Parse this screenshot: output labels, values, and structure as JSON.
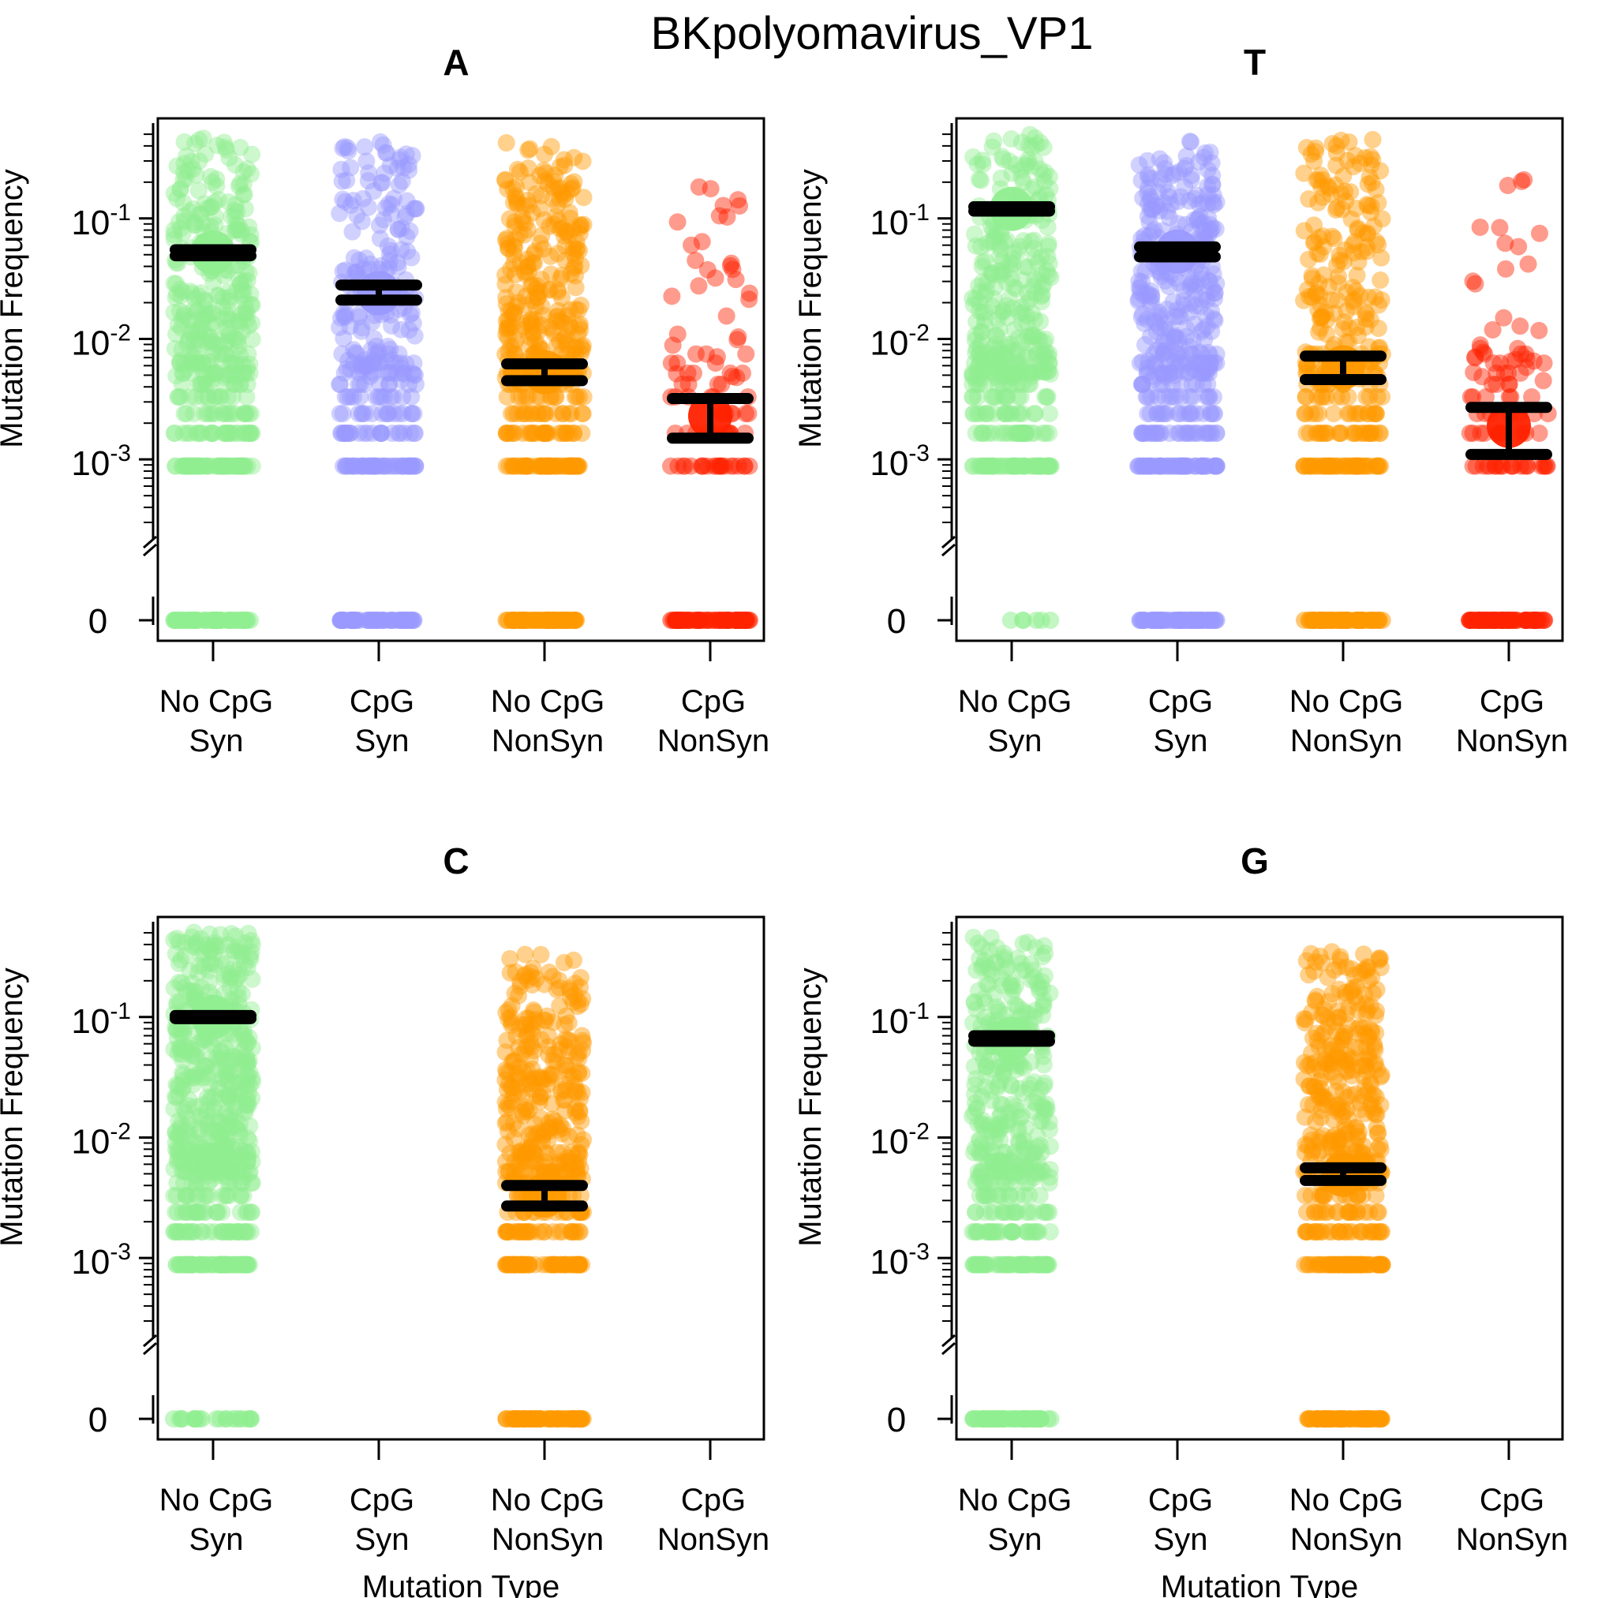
{
  "figure": {
    "title": "BKpolyomavirus_VP1",
    "ylabel": "Mutation Frequency",
    "xlabel": "Mutation Type",
    "y_tick_labels": [
      {
        "base": "10",
        "exp": "-1"
      },
      {
        "base": "10",
        "exp": "-2"
      },
      {
        "base": "10",
        "exp": "-3"
      }
    ],
    "zero_label": "0",
    "colors": {
      "No CpG Syn": "#90ee90",
      "CpG Syn": "#9999ff",
      "No CpG NonSyn": "#ff9900",
      "CpG NonSyn": "#ff2200",
      "bars": "#000000"
    }
  },
  "chart_data": [
    {
      "type": "scatter",
      "title": "A",
      "ylabel": "Mutation Frequency",
      "xlabel": "",
      "y_scale": "log",
      "y_range": [
        0.0003,
        0.6
      ],
      "x_category_lines": [
        [
          "No CpG",
          "Syn"
        ],
        [
          "CpG",
          "Syn"
        ],
        [
          "No CpG",
          "NonSyn"
        ],
        [
          "CpG",
          "NonSyn"
        ]
      ],
      "series": [
        {
          "name": "No CpG Syn",
          "mean": 0.052,
          "ci": [
            0.049,
            0.055
          ],
          "zero_count": "many",
          "density": "high",
          "spread": [
            0.0009,
            0.5
          ]
        },
        {
          "name": "CpG Syn",
          "mean": 0.024,
          "ci": [
            0.021,
            0.028
          ],
          "zero_count": "many",
          "density": "medium",
          "spread": [
            0.0009,
            0.45
          ]
        },
        {
          "name": "No CpG NonSyn",
          "mean": 0.0053,
          "ci": [
            0.0045,
            0.0062
          ],
          "zero_count": "many",
          "density": "high",
          "spread": [
            0.0009,
            0.45
          ]
        },
        {
          "name": "CpG NonSyn",
          "mean": 0.0023,
          "ci": [
            0.0015,
            0.0032
          ],
          "zero_count": "many",
          "density": "low",
          "spread": [
            0.0009,
            0.26
          ]
        }
      ]
    },
    {
      "type": "scatter",
      "title": "T",
      "ylabel": "Mutation Frequency",
      "xlabel": "",
      "y_scale": "log",
      "y_range": [
        0.0003,
        0.6
      ],
      "x_category_lines": [
        [
          "No CpG",
          "Syn"
        ],
        [
          "CpG",
          "Syn"
        ],
        [
          "No CpG",
          "NonSyn"
        ],
        [
          "CpG",
          "NonSyn"
        ]
      ],
      "series": [
        {
          "name": "No CpG Syn",
          "mean": 0.12,
          "ci": [
            0.115,
            0.125
          ],
          "zero_count": "few",
          "density": "high",
          "spread": [
            0.0009,
            0.55
          ]
        },
        {
          "name": "CpG Syn",
          "mean": 0.053,
          "ci": [
            0.048,
            0.058
          ],
          "zero_count": "many",
          "density": "high",
          "spread": [
            0.0009,
            0.45
          ]
        },
        {
          "name": "No CpG NonSyn",
          "mean": 0.0058,
          "ci": [
            0.0046,
            0.0072
          ],
          "zero_count": "many",
          "density": "medium",
          "spread": [
            0.0009,
            0.5
          ]
        },
        {
          "name": "CpG NonSyn",
          "mean": 0.0019,
          "ci": [
            0.0011,
            0.0027
          ],
          "zero_count": "many",
          "density": "low",
          "spread": [
            0.0009,
            0.22
          ]
        }
      ]
    },
    {
      "type": "scatter",
      "title": "C",
      "ylabel": "Mutation Frequency",
      "xlabel": "Mutation Type",
      "y_scale": "log",
      "y_range": [
        0.0003,
        0.6
      ],
      "x_category_lines": [
        [
          "No CpG",
          "Syn"
        ],
        [
          "CpG",
          "Syn"
        ],
        [
          "No CpG",
          "NonSyn"
        ],
        [
          "CpG",
          "NonSyn"
        ]
      ],
      "series": [
        {
          "name": "No CpG Syn",
          "mean": 0.1,
          "ci": [
            0.097,
            0.103
          ],
          "zero_count": "some",
          "density": "very-high",
          "spread": [
            0.0009,
            0.55
          ]
        },
        {
          "name": "No CpG NonSyn",
          "mean": 0.0033,
          "ci": [
            0.0027,
            0.004
          ],
          "zero_count": "many",
          "density": "high",
          "spread": [
            0.0009,
            0.35
          ]
        }
      ]
    },
    {
      "type": "scatter",
      "title": "G",
      "ylabel": "Mutation Frequency",
      "xlabel": "Mutation Type",
      "y_scale": "log",
      "y_range": [
        0.0003,
        0.6
      ],
      "x_category_lines": [
        [
          "No CpG",
          "Syn"
        ],
        [
          "CpG",
          "Syn"
        ],
        [
          "No CpG",
          "NonSyn"
        ],
        [
          "CpG",
          "NonSyn"
        ]
      ],
      "series": [
        {
          "name": "No CpG Syn",
          "mean": 0.066,
          "ci": [
            0.063,
            0.07
          ],
          "zero_count": "many",
          "density": "high",
          "spread": [
            0.0009,
            0.5
          ]
        },
        {
          "name": "No CpG NonSyn",
          "mean": 0.0049,
          "ci": [
            0.0044,
            0.0056
          ],
          "zero_count": "many",
          "density": "high",
          "spread": [
            0.0009,
            0.4
          ]
        }
      ]
    }
  ]
}
